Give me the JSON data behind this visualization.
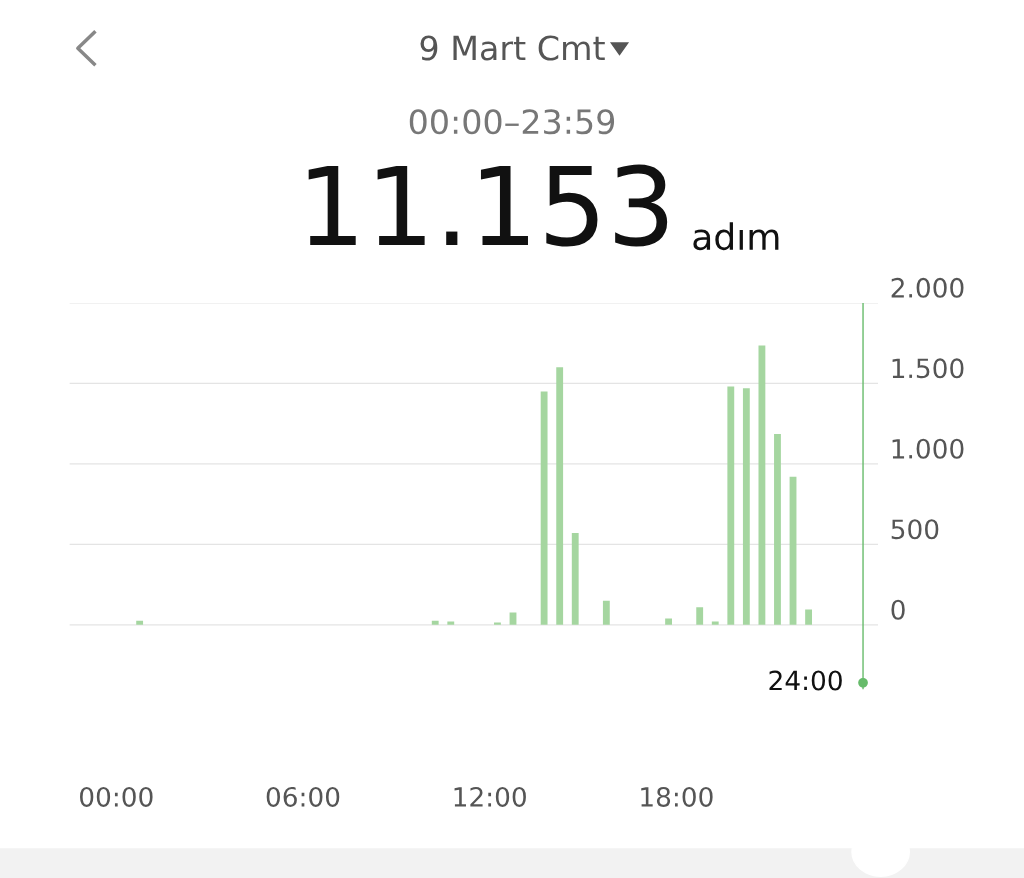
{
  "chart_data": {
    "type": "bar",
    "title": "9 Mart Cmt",
    "subtitle": "00:00–23:59",
    "annotations": [
      "11.153",
      "adım"
    ],
    "x": [
      0.75,
      10.25,
      10.75,
      12.25,
      12.75,
      13.75,
      14.25,
      14.75,
      15.75,
      17.75,
      18.75,
      19.25,
      19.75,
      20.25,
      20.75,
      21.25,
      21.75,
      22.25
    ],
    "values": [
      25,
      25,
      20,
      15,
      76,
      1450,
      1600,
      570,
      150,
      40,
      110,
      20,
      1480,
      1470,
      1735,
      1185,
      920,
      95
    ],
    "color": "#a5d6a0",
    "xlim": [
      -1.5,
      24.5
    ],
    "xticks": [
      {
        "value": 0,
        "label": "00:00"
      },
      {
        "value": 6,
        "label": "06:00"
      },
      {
        "value": 12,
        "label": "12:00"
      },
      {
        "value": 18,
        "label": "18:00"
      }
    ],
    "ylim": [
      -400,
      2000
    ],
    "yticks": [
      {
        "value": 0,
        "label": "0"
      },
      {
        "value": 500,
        "label": "500"
      },
      {
        "value": 1000,
        "label": "1.000"
      },
      {
        "value": 1500,
        "label": "1.500"
      },
      {
        "value": 2000,
        "label": "2.000"
      }
    ],
    "grid": "y",
    "ref_lines": [
      {
        "axis": "x",
        "value": 24,
        "label": "24:00",
        "color": "#66bb6a"
      }
    ]
  }
}
